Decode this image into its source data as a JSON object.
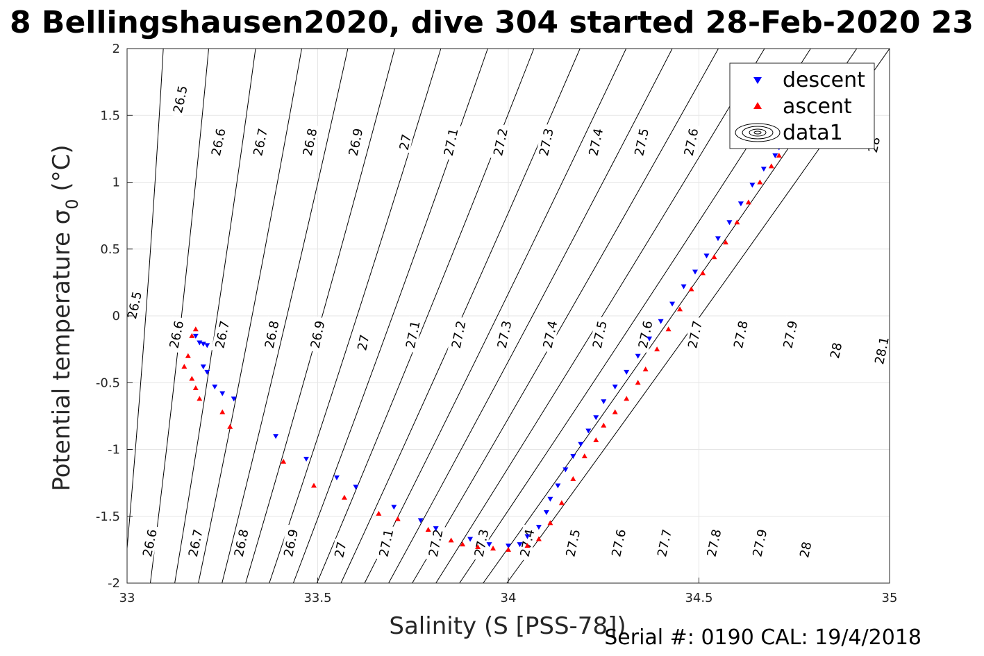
{
  "chart_data": {
    "type": "scatter",
    "title": "8 Bellingshausen2020, dive 304 started 28-Feb-2020 23",
    "xlabel": "Salinity (S [PSS-78])",
    "ylabel": "Potential temperature σ",
    "ylabel_subscript": "0",
    "ylabel_unit": " (°C)",
    "xlim": [
      33,
      35
    ],
    "ylim": [
      -2,
      2
    ],
    "xticks": [
      "33",
      "33.5",
      "34",
      "34.5",
      "35"
    ],
    "yticks": [
      "-2",
      "-1.5",
      "-1",
      "-0.5",
      "0",
      "0.5",
      "1",
      "1.5",
      "2"
    ],
    "grid": true,
    "legend_position": "top-right",
    "footer": "Serial #: 0190  CAL: 19/4/2018",
    "series": [
      {
        "name": "descent",
        "color": "#0000ff",
        "marker": "triangle-down",
        "points": [
          [
            33.18,
            -0.15
          ],
          [
            33.19,
            -0.2
          ],
          [
            33.2,
            -0.21
          ],
          [
            33.21,
            -0.22
          ],
          [
            33.2,
            -0.38
          ],
          [
            33.21,
            -0.42
          ],
          [
            33.23,
            -0.53
          ],
          [
            33.25,
            -0.58
          ],
          [
            33.28,
            -0.62
          ],
          [
            33.39,
            -0.9
          ],
          [
            33.47,
            -1.07
          ],
          [
            33.55,
            -1.21
          ],
          [
            33.6,
            -1.28
          ],
          [
            33.7,
            -1.43
          ],
          [
            33.77,
            -1.53
          ],
          [
            33.81,
            -1.59
          ],
          [
            33.9,
            -1.67
          ],
          [
            33.95,
            -1.71
          ],
          [
            34.0,
            -1.72
          ],
          [
            34.03,
            -1.71
          ],
          [
            34.05,
            -1.65
          ],
          [
            34.08,
            -1.58
          ],
          [
            34.1,
            -1.47
          ],
          [
            34.11,
            -1.37
          ],
          [
            34.13,
            -1.27
          ],
          [
            34.15,
            -1.15
          ],
          [
            34.17,
            -1.05
          ],
          [
            34.19,
            -0.96
          ],
          [
            34.21,
            -0.86
          ],
          [
            34.23,
            -0.76
          ],
          [
            34.25,
            -0.64
          ],
          [
            34.28,
            -0.53
          ],
          [
            34.31,
            -0.42
          ],
          [
            34.34,
            -0.3
          ],
          [
            34.37,
            -0.17
          ],
          [
            34.4,
            -0.04
          ],
          [
            34.43,
            0.09
          ],
          [
            34.46,
            0.22
          ],
          [
            34.49,
            0.33
          ],
          [
            34.52,
            0.45
          ],
          [
            34.55,
            0.58
          ],
          [
            34.58,
            0.7
          ],
          [
            34.61,
            0.84
          ],
          [
            34.64,
            0.98
          ],
          [
            34.67,
            1.1
          ],
          [
            34.7,
            1.2
          ],
          [
            34.71,
            1.26
          ]
        ]
      },
      {
        "name": "ascent",
        "color": "#ff0000",
        "marker": "triangle-up",
        "points": [
          [
            33.18,
            -0.1
          ],
          [
            33.17,
            -0.15
          ],
          [
            33.16,
            -0.3
          ],
          [
            33.15,
            -0.38
          ],
          [
            33.17,
            -0.47
          ],
          [
            33.18,
            -0.54
          ],
          [
            33.19,
            -0.62
          ],
          [
            33.25,
            -0.72
          ],
          [
            33.27,
            -0.83
          ],
          [
            33.41,
            -1.09
          ],
          [
            33.49,
            -1.27
          ],
          [
            33.57,
            -1.36
          ],
          [
            33.66,
            -1.48
          ],
          [
            33.71,
            -1.52
          ],
          [
            33.79,
            -1.6
          ],
          [
            33.85,
            -1.68
          ],
          [
            33.88,
            -1.71
          ],
          [
            33.92,
            -1.73
          ],
          [
            33.96,
            -1.74
          ],
          [
            34.0,
            -1.75
          ],
          [
            34.05,
            -1.72
          ],
          [
            34.08,
            -1.67
          ],
          [
            34.11,
            -1.55
          ],
          [
            34.14,
            -1.4
          ],
          [
            34.17,
            -1.22
          ],
          [
            34.2,
            -1.05
          ],
          [
            34.23,
            -0.93
          ],
          [
            34.25,
            -0.82
          ],
          [
            34.28,
            -0.72
          ],
          [
            34.31,
            -0.62
          ],
          [
            34.34,
            -0.5
          ],
          [
            34.36,
            -0.4
          ],
          [
            34.39,
            -0.25
          ],
          [
            34.42,
            -0.1
          ],
          [
            34.45,
            0.05
          ],
          [
            34.48,
            0.2
          ],
          [
            34.51,
            0.32
          ],
          [
            34.54,
            0.44
          ],
          [
            34.57,
            0.55
          ],
          [
            34.6,
            0.7
          ],
          [
            34.63,
            0.85
          ],
          [
            34.66,
            1.0
          ],
          [
            34.69,
            1.12
          ],
          [
            34.71,
            1.2
          ]
        ]
      },
      {
        "name": "data1",
        "color": "#000000",
        "marker": "contour",
        "points": []
      }
    ]
  },
  "isopycnals": [
    {
      "v": "26.5",
      "x1": 32.992,
      "x2": 33.095
    },
    {
      "v": "26.6",
      "x1": 33.061,
      "x2": 33.214
    },
    {
      "v": "26.7",
      "x1": 33.125,
      "x2": 33.337
    },
    {
      "v": "26.8",
      "x1": 33.187,
      "x2": 33.458
    },
    {
      "v": "26.9",
      "x1": 33.249,
      "x2": 33.579
    },
    {
      "v": "27",
      "x1": 33.311,
      "x2": 33.702
    },
    {
      "v": "27.1",
      "x1": 33.373,
      "x2": 33.823
    },
    {
      "v": "27.2",
      "x1": 33.436,
      "x2": 33.946
    },
    {
      "v": "27.3",
      "x1": 33.498,
      "x2": 34.067
    },
    {
      "v": "27.4",
      "x1": 33.561,
      "x2": 34.188
    },
    {
      "v": "27.5",
      "x1": 33.623,
      "x2": 34.309
    },
    {
      "v": "27.6",
      "x1": 33.686,
      "x2": 34.43
    },
    {
      "v": "27.7",
      "x1": 33.748,
      "x2": 34.551
    },
    {
      "v": "27.8",
      "x1": 33.81,
      "x2": 34.672
    },
    {
      "v": "27.9",
      "x1": 33.872,
      "x2": 34.793
    },
    {
      "v": "28",
      "x1": 33.934,
      "x2": 34.914
    },
    {
      "v": "28.1",
      "x1": 33.996,
      "x2": 35.0
    }
  ],
  "isopycnal_labels": [
    {
      "v": "26.5",
      "x": 33.14,
      "y": 1.62
    },
    {
      "v": "26.6",
      "x": 33.24,
      "y": 1.3
    },
    {
      "v": "26.7",
      "x": 33.35,
      "y": 1.3
    },
    {
      "v": "26.8",
      "x": 33.48,
      "y": 1.3
    },
    {
      "v": "26.9",
      "x": 33.6,
      "y": 1.3
    },
    {
      "v": "27",
      "x": 33.73,
      "y": 1.3
    },
    {
      "v": "27.1",
      "x": 33.85,
      "y": 1.3
    },
    {
      "v": "27.2",
      "x": 33.98,
      "y": 1.3
    },
    {
      "v": "27.3",
      "x": 34.1,
      "y": 1.3
    },
    {
      "v": "27.4",
      "x": 34.23,
      "y": 1.3
    },
    {
      "v": "27.5",
      "x": 34.35,
      "y": 1.3
    },
    {
      "v": "27.6",
      "x": 34.48,
      "y": 1.3
    },
    {
      "v": "28",
      "x": 34.96,
      "y": 1.28
    },
    {
      "v": "26.5",
      "x": 33.02,
      "y": 0.08
    },
    {
      "v": "26.6",
      "x": 33.13,
      "y": -0.14
    },
    {
      "v": "26.7",
      "x": 33.25,
      "y": -0.14
    },
    {
      "v": "26.8",
      "x": 33.38,
      "y": -0.14
    },
    {
      "v": "26.9",
      "x": 33.5,
      "y": -0.14
    },
    {
      "v": "27",
      "x": 33.62,
      "y": -0.2
    },
    {
      "v": "27.1",
      "x": 33.75,
      "y": -0.14
    },
    {
      "v": "27.2",
      "x": 33.87,
      "y": -0.14
    },
    {
      "v": "27.3",
      "x": 33.99,
      "y": -0.14
    },
    {
      "v": "27.4",
      "x": 34.11,
      "y": -0.14
    },
    {
      "v": "27.5",
      "x": 34.24,
      "y": -0.14
    },
    {
      "v": "27.6",
      "x": 34.36,
      "y": -0.14
    },
    {
      "v": "27.7",
      "x": 34.49,
      "y": -0.14
    },
    {
      "v": "27.8",
      "x": 34.61,
      "y": -0.14
    },
    {
      "v": "27.9",
      "x": 34.74,
      "y": -0.14
    },
    {
      "v": "28",
      "x": 34.86,
      "y": -0.26
    },
    {
      "v": "28.1",
      "x": 34.98,
      "y": -0.26
    },
    {
      "v": "26.6",
      "x": 33.06,
      "y": -1.7
    },
    {
      "v": "26.7",
      "x": 33.18,
      "y": -1.7
    },
    {
      "v": "26.8",
      "x": 33.3,
      "y": -1.7
    },
    {
      "v": "26.9",
      "x": 33.43,
      "y": -1.7
    },
    {
      "v": "27",
      "x": 33.56,
      "y": -1.75
    },
    {
      "v": "27.1",
      "x": 33.68,
      "y": -1.7
    },
    {
      "v": "27.2",
      "x": 33.81,
      "y": -1.7
    },
    {
      "v": "27.3",
      "x": 33.93,
      "y": -1.7
    },
    {
      "v": "27.4",
      "x": 34.05,
      "y": -1.7
    },
    {
      "v": "27.5",
      "x": 34.17,
      "y": -1.7
    },
    {
      "v": "27.6",
      "x": 34.29,
      "y": -1.7
    },
    {
      "v": "27.7",
      "x": 34.41,
      "y": -1.7
    },
    {
      "v": "27.8",
      "x": 34.54,
      "y": -1.7
    },
    {
      "v": "27.9",
      "x": 34.66,
      "y": -1.7
    },
    {
      "v": "28",
      "x": 34.78,
      "y": -1.75
    }
  ]
}
